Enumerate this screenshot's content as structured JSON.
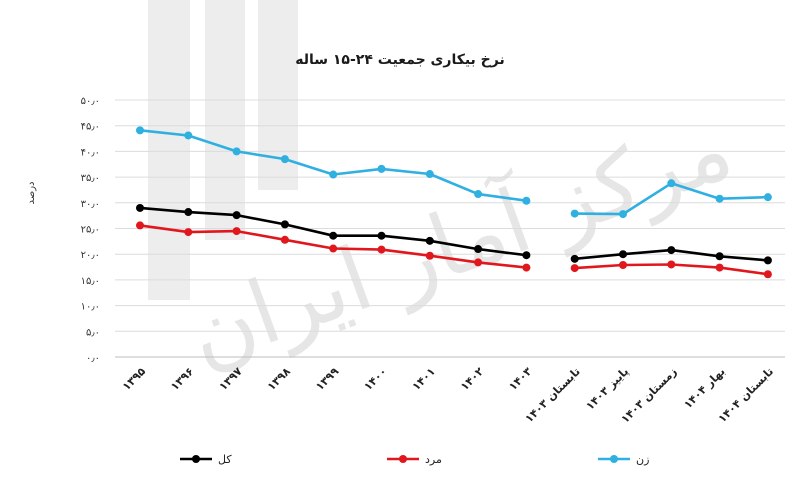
{
  "chart_data": {
    "type": "line",
    "title": "نرخ بیکاری جمعیت ۲۴-۱۵ ساله",
    "xlabel": "",
    "ylabel": "درصد",
    "ylim": [
      0,
      50
    ],
    "yticks": [
      0,
      5,
      10,
      15,
      20,
      25,
      30,
      35,
      40,
      45,
      50
    ],
    "ytick_labels": [
      "۰٫۰",
      "۵٫۰",
      "۱۰٫۰",
      "۱۵٫۰",
      "۲۰٫۰",
      "۲۵٫۰",
      "۳۰٫۰",
      "۳۵٫۰",
      "۴۰٫۰",
      "۴۵٫۰",
      "۵۰٫۰"
    ],
    "grid": true,
    "legend_position": "bottom",
    "categories": [
      "۱۳۹۵",
      "۱۳۹۶",
      "۱۳۹۷",
      "۱۳۹۸",
      "۱۳۹۹",
      "۱۴۰۰",
      "۱۴۰۱",
      "۱۴۰۲",
      "۱۴۰۳",
      "تابستان ۱۴۰۳",
      "پاییز ۱۴۰۳",
      "زمستان ۱۴۰۳",
      "بهار ۱۴۰۴",
      "تابستان ۱۴۰۴"
    ],
    "series": [
      {
        "name": "کل",
        "color": "#000000",
        "values": [
          29.0,
          28.2,
          27.6,
          25.8,
          23.6,
          23.6,
          22.6,
          21.0,
          19.8,
          19.1,
          20.0,
          20.8,
          19.6,
          18.8
        ]
      },
      {
        "name": "مرد",
        "color": "#e0181e",
        "values": [
          25.6,
          24.3,
          24.5,
          22.8,
          21.1,
          20.9,
          19.7,
          18.4,
          17.4,
          17.3,
          17.9,
          18.0,
          17.4,
          16.1
        ]
      },
      {
        "name": "زن",
        "color": "#2fb0e0",
        "values": [
          44.1,
          43.1,
          40.0,
          38.5,
          35.5,
          36.6,
          35.6,
          31.7,
          30.4,
          27.9,
          27.8,
          33.8,
          30.8,
          31.1
        ]
      }
    ],
    "gap_after_index": 8
  },
  "watermark": {
    "text": "مرکز آمار ایران"
  }
}
